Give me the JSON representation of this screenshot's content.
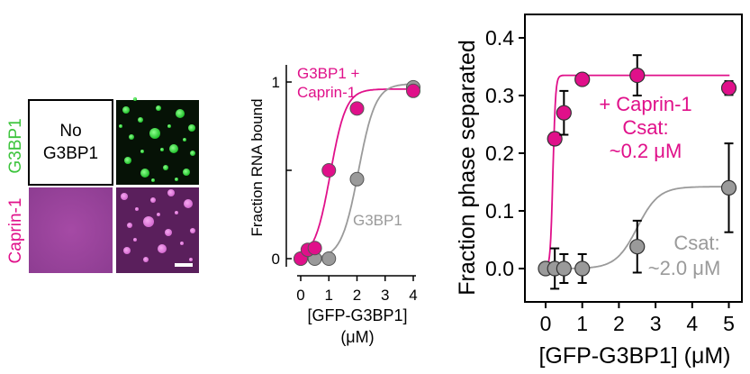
{
  "micrograph_panel": {
    "row_labels": [
      "G3BP1",
      "Caprin-1"
    ],
    "row_label_colors": [
      "#3cc43c",
      "#e0108a"
    ],
    "empty_panel_text": [
      "No",
      "G3BP1"
    ]
  },
  "chart_data": [
    {
      "type": "scatter",
      "title": "",
      "xlabel": "[GFP-G3BP1]",
      "xlabel_unit": "(μM)",
      "ylabel": "Fraction RNA bound",
      "xlim": [
        -0.2,
        4.2
      ],
      "ylim": [
        -0.05,
        1.05
      ],
      "x_ticks": [
        "0",
        "1",
        "2",
        "3",
        "4"
      ],
      "y_ticks": [
        "0",
        "1"
      ],
      "series": [
        {
          "name": "G3BP1 + Caprin-1",
          "legend_lines": [
            "G3BP1 +",
            "Caprin-1"
          ],
          "color": "#e0108a",
          "x": [
            0,
            0.25,
            0.5,
            1,
            2,
            4
          ],
          "y": [
            0.0,
            0.05,
            0.06,
            0.5,
            0.85,
            0.95
          ]
        },
        {
          "name": "G3BP1",
          "legend_lines": [
            "G3BP1"
          ],
          "color": "#9a9a9a",
          "x": [
            0,
            0.5,
            1,
            2,
            4
          ],
          "y": [
            0.0,
            0.0,
            0.0,
            0.45,
            0.97
          ]
        }
      ]
    },
    {
      "type": "scatter",
      "title": "",
      "xlabel": "[GFP-G3BP1] (μM)",
      "ylabel": "Fraction phase separated",
      "xlim": [
        -0.5,
        5.2
      ],
      "ylim": [
        -0.05,
        0.42
      ],
      "x_ticks": [
        "0",
        "1",
        "2",
        "3",
        "4",
        "5"
      ],
      "y_ticks": [
        "0.0",
        "0.1",
        "0.2",
        "0.3",
        "0.4"
      ],
      "series": [
        {
          "name": "+ Caprin-1",
          "annotation_lines": [
            "+ Caprin-1",
            "Csat:",
            "~0.2 μM"
          ],
          "color": "#e0108a",
          "x": [
            0.25,
            0.5,
            1,
            2.5,
            5
          ],
          "y": [
            0.225,
            0.27,
            0.328,
            0.335,
            0.313
          ],
          "err": [
            0.01,
            0.038,
            0.008,
            0.035,
            0.012
          ]
        },
        {
          "name": "Csat: ~2.0 μM",
          "annotation_lines": [
            "Csat:",
            "~2.0 μM"
          ],
          "color": "#9a9a9a",
          "x": [
            0,
            0.25,
            0.5,
            1,
            2.5,
            5
          ],
          "y": [
            0.0,
            0.0,
            0.0,
            0.0,
            0.038,
            0.14
          ],
          "err": [
            0.0,
            0.035,
            0.025,
            0.025,
            0.045,
            0.077
          ]
        }
      ]
    }
  ]
}
